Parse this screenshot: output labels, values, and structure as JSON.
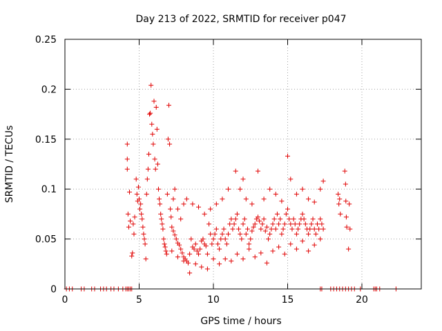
{
  "chart_data": {
    "type": "scatter",
    "title": "Day 213 of 2022, SRMTID for receiver p047",
    "xlabel": "GPS time / hours",
    "ylabel": "SRMTID / TECUs",
    "xlim": [
      0,
      24
    ],
    "ylim": [
      0,
      0.25
    ],
    "xticks": [
      0,
      5,
      10,
      15,
      20
    ],
    "xtick_labels": [
      "0",
      "5",
      "10",
      "15",
      "20"
    ],
    "yticks": [
      0,
      0.05,
      0.1,
      0.15,
      0.2,
      0.25
    ],
    "ytick_labels": [
      "0",
      "0.05",
      "0.1",
      "0.15",
      "0.2",
      "0.25"
    ],
    "grid": true,
    "marker": "+",
    "series": [
      {
        "name": "p047",
        "color": "#e00000",
        "points": [
          [
            0.1,
            0
          ],
          [
            0.3,
            0
          ],
          [
            0.5,
            0
          ],
          [
            1.1,
            0
          ],
          [
            1.3,
            0
          ],
          [
            1.8,
            0
          ],
          [
            2.0,
            0
          ],
          [
            2.4,
            0
          ],
          [
            2.6,
            0
          ],
          [
            2.8,
            0
          ],
          [
            3.1,
            0
          ],
          [
            3.3,
            0
          ],
          [
            3.6,
            0
          ],
          [
            3.9,
            0
          ],
          [
            4.1,
            0
          ],
          [
            4.2,
            0
          ],
          [
            4.3,
            0
          ],
          [
            4.4,
            0
          ],
          [
            4.5,
            0
          ],
          [
            17.2,
            0
          ],
          [
            17.3,
            0
          ],
          [
            17.9,
            0
          ],
          [
            18.1,
            0
          ],
          [
            18.3,
            0
          ],
          [
            18.5,
            0
          ],
          [
            18.7,
            0
          ],
          [
            18.9,
            0
          ],
          [
            19.1,
            0
          ],
          [
            19.3,
            0
          ],
          [
            19.5,
            0
          ],
          [
            19.9,
            0
          ],
          [
            20.8,
            0
          ],
          [
            20.9,
            0
          ],
          [
            21.0,
            0
          ],
          [
            21.2,
            0
          ],
          [
            22.3,
            0
          ],
          [
            4.2,
            0.145
          ],
          [
            4.2,
            0.13
          ],
          [
            4.2,
            0.12
          ],
          [
            4.25,
            0.075
          ],
          [
            4.3,
            0.062
          ],
          [
            4.35,
            0.097
          ],
          [
            4.4,
            0.068
          ],
          [
            4.5,
            0.033
          ],
          [
            4.55,
            0.036
          ],
          [
            4.6,
            0.065
          ],
          [
            4.65,
            0.055
          ],
          [
            4.7,
            0.072
          ],
          [
            4.8,
            0.11
          ],
          [
            4.85,
            0.095
          ],
          [
            4.9,
            0.088
          ],
          [
            4.95,
            0.102
          ],
          [
            5.0,
            0.09
          ],
          [
            5.05,
            0.08
          ],
          [
            5.1,
            0.085
          ],
          [
            5.15,
            0.075
          ],
          [
            5.2,
            0.07
          ],
          [
            5.25,
            0.062
          ],
          [
            5.3,
            0.055
          ],
          [
            5.35,
            0.05
          ],
          [
            5.4,
            0.045
          ],
          [
            5.45,
            0.03
          ],
          [
            5.5,
            0.095
          ],
          [
            5.55,
            0.11
          ],
          [
            5.6,
            0.12
          ],
          [
            5.65,
            0.135
          ],
          [
            5.7,
            0.175
          ],
          [
            5.75,
            0.176
          ],
          [
            5.8,
            0.204
          ],
          [
            5.85,
            0.165
          ],
          [
            5.9,
            0.155
          ],
          [
            5.95,
            0.145
          ],
          [
            6.0,
            0.188
          ],
          [
            6.05,
            0.13
          ],
          [
            6.1,
            0.12
          ],
          [
            6.15,
            0.182
          ],
          [
            6.2,
            0.16
          ],
          [
            6.25,
            0.125
          ],
          [
            6.3,
            0.1
          ],
          [
            6.35,
            0.09
          ],
          [
            6.4,
            0.085
          ],
          [
            6.45,
            0.075
          ],
          [
            6.5,
            0.07
          ],
          [
            6.55,
            0.065
          ],
          [
            6.6,
            0.06
          ],
          [
            6.65,
            0.05
          ],
          [
            6.7,
            0.045
          ],
          [
            6.75,
            0.042
          ],
          [
            6.8,
            0.038
          ],
          [
            6.85,
            0.035
          ],
          [
            6.9,
            0.095
          ],
          [
            6.95,
            0.15
          ],
          [
            7.0,
            0.184
          ],
          [
            7.05,
            0.145
          ],
          [
            7.1,
            0.08
          ],
          [
            7.15,
            0.072
          ],
          [
            7.2,
            0.062
          ],
          [
            7.3,
            0.058
          ],
          [
            7.4,
            0.054
          ],
          [
            7.5,
            0.05
          ],
          [
            7.6,
            0.046
          ],
          [
            7.7,
            0.044
          ],
          [
            7.8,
            0.04
          ],
          [
            7.9,
            0.036
          ],
          [
            8.0,
            0.032
          ],
          [
            8.1,
            0.03
          ],
          [
            8.2,
            0.028
          ],
          [
            8.3,
            0.026
          ],
          [
            8.4,
            0.035
          ],
          [
            8.5,
            0.05
          ],
          [
            8.6,
            0.042
          ],
          [
            8.7,
            0.04
          ],
          [
            8.8,
            0.045
          ],
          [
            8.9,
            0.038
          ],
          [
            9.0,
            0.035
          ],
          [
            9.1,
            0.04
          ],
          [
            9.2,
            0.048
          ],
          [
            9.3,
            0.05
          ],
          [
            9.4,
            0.045
          ],
          [
            9.5,
            0.043
          ],
          [
            9.6,
            0.035
          ],
          [
            9.7,
            0.065
          ],
          [
            9.8,
            0.055
          ],
          [
            9.9,
            0.045
          ],
          [
            10.0,
            0.05
          ],
          [
            10.1,
            0.055
          ],
          [
            10.2,
            0.06
          ],
          [
            10.3,
            0.045
          ],
          [
            10.4,
            0.04
          ],
          [
            10.5,
            0.05
          ],
          [
            10.6,
            0.055
          ],
          [
            10.7,
            0.06
          ],
          [
            10.8,
            0.05
          ],
          [
            10.9,
            0.045
          ],
          [
            11.0,
            0.055
          ],
          [
            11.1,
            0.065
          ],
          [
            11.2,
            0.07
          ],
          [
            11.3,
            0.06
          ],
          [
            11.4,
            0.065
          ],
          [
            11.5,
            0.07
          ],
          [
            11.6,
            0.075
          ],
          [
            11.7,
            0.06
          ],
          [
            11.8,
            0.055
          ],
          [
            11.9,
            0.05
          ],
          [
            12.0,
            0.065
          ],
          [
            12.1,
            0.07
          ],
          [
            12.2,
            0.055
          ],
          [
            12.3,
            0.06
          ],
          [
            12.4,
            0.045
          ],
          [
            12.5,
            0.05
          ],
          [
            12.6,
            0.058
          ],
          [
            12.7,
            0.062
          ],
          [
            12.8,
            0.065
          ],
          [
            12.9,
            0.07
          ],
          [
            13.0,
            0.072
          ],
          [
            13.1,
            0.068
          ],
          [
            13.2,
            0.06
          ],
          [
            13.3,
            0.065
          ],
          [
            13.4,
            0.07
          ],
          [
            13.5,
            0.058
          ],
          [
            13.6,
            0.062
          ],
          [
            13.7,
            0.05
          ],
          [
            13.8,
            0.055
          ],
          [
            13.9,
            0.06
          ],
          [
            14.0,
            0.065
          ],
          [
            14.1,
            0.07
          ],
          [
            14.2,
            0.06
          ],
          [
            14.3,
            0.075
          ],
          [
            14.4,
            0.065
          ],
          [
            14.5,
            0.07
          ],
          [
            14.6,
            0.055
          ],
          [
            14.7,
            0.06
          ],
          [
            14.8,
            0.065
          ],
          [
            14.9,
            0.075
          ],
          [
            15.0,
            0.08
          ],
          [
            15.1,
            0.07
          ],
          [
            15.2,
            0.065
          ],
          [
            15.3,
            0.06
          ],
          [
            15.4,
            0.07
          ],
          [
            15.5,
            0.065
          ],
          [
            15.6,
            0.055
          ],
          [
            15.7,
            0.06
          ],
          [
            15.8,
            0.065
          ],
          [
            15.9,
            0.07
          ],
          [
            16.0,
            0.075
          ],
          [
            16.1,
            0.07
          ],
          [
            16.2,
            0.065
          ],
          [
            16.3,
            0.06
          ],
          [
            16.4,
            0.055
          ],
          [
            16.5,
            0.06
          ],
          [
            16.6,
            0.065
          ],
          [
            16.7,
            0.07
          ],
          [
            16.8,
            0.06
          ],
          [
            16.9,
            0.055
          ],
          [
            17.0,
            0.065
          ],
          [
            17.1,
            0.06
          ],
          [
            17.2,
            0.07
          ],
          [
            17.3,
            0.065
          ],
          [
            17.4,
            0.06
          ],
          [
            7.3,
            0.09
          ],
          [
            7.4,
            0.1
          ],
          [
            7.6,
            0.08
          ],
          [
            7.8,
            0.07
          ],
          [
            8.0,
            0.085
          ],
          [
            8.2,
            0.09
          ],
          [
            8.6,
            0.085
          ],
          [
            9.0,
            0.082
          ],
          [
            9.4,
            0.075
          ],
          [
            9.8,
            0.08
          ],
          [
            10.2,
            0.085
          ],
          [
            10.6,
            0.09
          ],
          [
            11.0,
            0.1
          ],
          [
            11.5,
            0.118
          ],
          [
            11.8,
            0.1
          ],
          [
            12.0,
            0.11
          ],
          [
            12.2,
            0.09
          ],
          [
            12.6,
            0.085
          ],
          [
            13.0,
            0.118
          ],
          [
            13.4,
            0.09
          ],
          [
            13.8,
            0.1
          ],
          [
            14.2,
            0.095
          ],
          [
            14.6,
            0.088
          ],
          [
            15.0,
            0.133
          ],
          [
            15.2,
            0.11
          ],
          [
            15.6,
            0.095
          ],
          [
            16.0,
            0.1
          ],
          [
            16.4,
            0.09
          ],
          [
            16.8,
            0.087
          ],
          [
            17.2,
            0.1
          ],
          [
            17.4,
            0.108
          ],
          [
            7.2,
            0.038
          ],
          [
            7.6,
            0.032
          ],
          [
            8.0,
            0.028
          ],
          [
            8.4,
            0.016
          ],
          [
            8.8,
            0.025
          ],
          [
            9.2,
            0.022
          ],
          [
            9.6,
            0.02
          ],
          [
            10.0,
            0.03
          ],
          [
            10.4,
            0.025
          ],
          [
            10.8,
            0.03
          ],
          [
            11.2,
            0.028
          ],
          [
            11.6,
            0.035
          ],
          [
            12.0,
            0.03
          ],
          [
            12.4,
            0.04
          ],
          [
            12.8,
            0.032
          ],
          [
            13.2,
            0.036
          ],
          [
            13.6,
            0.026
          ],
          [
            14.0,
            0.038
          ],
          [
            14.4,
            0.042
          ],
          [
            14.8,
            0.035
          ],
          [
            15.2,
            0.045
          ],
          [
            15.6,
            0.04
          ],
          [
            16.0,
            0.048
          ],
          [
            16.4,
            0.038
          ],
          [
            16.8,
            0.044
          ],
          [
            17.2,
            0.05
          ],
          [
            18.4,
            0.095
          ],
          [
            18.45,
            0.085
          ],
          [
            18.5,
            0.09
          ],
          [
            18.55,
            0.075
          ],
          [
            18.85,
            0.118
          ],
          [
            18.9,
            0.105
          ],
          [
            18.92,
            0.088
          ],
          [
            18.95,
            0.072
          ],
          [
            18.98,
            0.062
          ],
          [
            19.1,
            0.04
          ],
          [
            19.15,
            0.085
          ],
          [
            19.2,
            0.06
          ]
        ]
      }
    ]
  }
}
